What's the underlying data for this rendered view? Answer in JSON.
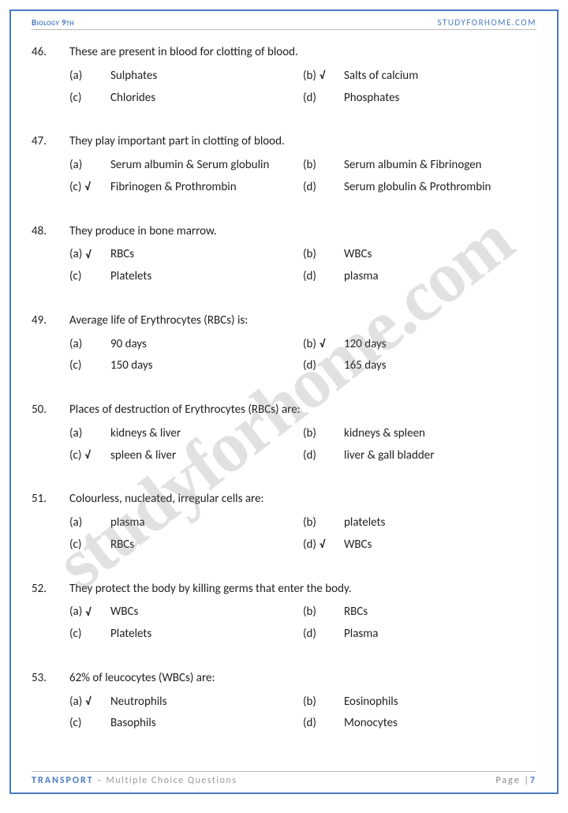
{
  "header": {
    "left": "Biology 9th",
    "right": "STUDYFORHOME.COM"
  },
  "watermark": "studyforhome.com",
  "footer": {
    "topic": "TRANSPORT",
    "sub": " – Multiple Choice Questions",
    "page_label": "Page |",
    "page_num": "7"
  },
  "questions": [
    {
      "num": "46.",
      "text": "These are present in blood for clotting of blood.",
      "options": [
        {
          "lbl": "(a)",
          "val": "Sulphates",
          "correct": false
        },
        {
          "lbl": "(b)",
          "val": "Salts of calcium",
          "correct": true
        },
        {
          "lbl": "(c)",
          "val": "Chlorides",
          "correct": false
        },
        {
          "lbl": "(d)",
          "val": "Phosphates",
          "correct": false
        }
      ]
    },
    {
      "num": "47.",
      "text": "They play important part in clotting of blood.",
      "options": [
        {
          "lbl": "(a)",
          "val": "Serum albumin & Serum globulin",
          "correct": false
        },
        {
          "lbl": "(b)",
          "val": "Serum albumin & Fibrinogen",
          "correct": false
        },
        {
          "lbl": "(c)",
          "val": "Fibrinogen & Prothrombin",
          "correct": true
        },
        {
          "lbl": "(d)",
          "val": "Serum globulin & Prothrombin",
          "correct": false
        }
      ]
    },
    {
      "num": "48.",
      "text": "They produce in bone marrow.",
      "options": [
        {
          "lbl": "(a)",
          "val": "RBCs",
          "correct": true
        },
        {
          "lbl": "(b)",
          "val": "WBCs",
          "correct": false
        },
        {
          "lbl": "(c)",
          "val": "Platelets",
          "correct": false
        },
        {
          "lbl": "(d)",
          "val": "plasma",
          "correct": false
        }
      ]
    },
    {
      "num": "49.",
      "text": "Average life of Erythrocytes (RBCs) is:",
      "options": [
        {
          "lbl": "(a)",
          "val": "90 days",
          "correct": false
        },
        {
          "lbl": "(b)",
          "val": "120 days",
          "correct": true
        },
        {
          "lbl": "(c)",
          "val": "150 days",
          "correct": false
        },
        {
          "lbl": "(d)",
          "val": "165 days",
          "correct": false
        }
      ]
    },
    {
      "num": "50.",
      "text": "Places of destruction of Erythrocytes (RBCs) are:",
      "options": [
        {
          "lbl": "(a)",
          "val": "kidneys & liver",
          "correct": false
        },
        {
          "lbl": "(b)",
          "val": "kidneys & spleen",
          "correct": false
        },
        {
          "lbl": "(c)",
          "val": "spleen & liver",
          "correct": true
        },
        {
          "lbl": "(d)",
          "val": "liver & gall bladder",
          "correct": false
        }
      ]
    },
    {
      "num": "51.",
      "text": "Colourless, nucleated, irregular cells are:",
      "options": [
        {
          "lbl": "(a)",
          "val": "plasma",
          "correct": false
        },
        {
          "lbl": "(b)",
          "val": "platelets",
          "correct": false
        },
        {
          "lbl": "(c)",
          "val": "RBCs",
          "correct": false
        },
        {
          "lbl": "(d)",
          "val": "WBCs",
          "correct": true
        }
      ]
    },
    {
      "num": "52.",
      "text": "They protect the body by killing germs that enter the body.",
      "options": [
        {
          "lbl": "(a)",
          "val": "WBCs",
          "correct": true
        },
        {
          "lbl": "(b)",
          "val": "RBCs",
          "correct": false
        },
        {
          "lbl": "(c)",
          "val": "Platelets",
          "correct": false
        },
        {
          "lbl": "(d)",
          "val": "Plasma",
          "correct": false
        }
      ]
    },
    {
      "num": "53.",
      "text": "62% of leucocytes (WBCs) are:",
      "options": [
        {
          "lbl": "(a)",
          "val": "Neutrophils",
          "correct": true
        },
        {
          "lbl": "(b)",
          "val": "Eosinophils",
          "correct": false
        },
        {
          "lbl": "(c)",
          "val": "Basophils",
          "correct": false
        },
        {
          "lbl": "(d)",
          "val": "Monocytes",
          "correct": false
        }
      ]
    }
  ]
}
